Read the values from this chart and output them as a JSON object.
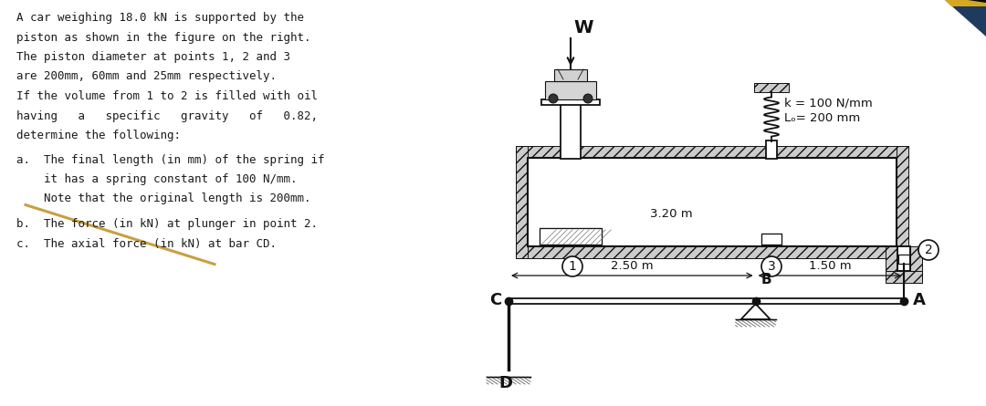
{
  "bg_color": "#ffffff",
  "lc": "#111111",
  "hc": "#777777",
  "problem_lines": [
    "A car weighing 18.0 kN is supported by the",
    "piston as shown in the figure on the right.",
    "The piston diameter at points 1, 2 and 3",
    "are 200mm, 60mm and 25mm respectively.",
    "If the volume from 1 to 2 is filled with oil",
    "having   a   specific   gravity   of   0.82,",
    "determine the following:"
  ],
  "item_a1": "a.  The final length (in mm) of the spring if",
  "item_a2": "    it has a spring constant of 100 N/mm.",
  "item_a3": "    Note that the original length is 200mm.",
  "item_b": "b.  The force (in kN) at plunger in point 2.",
  "item_c": "c.  The axial force (in kN) at bar CD.",
  "spring_k": "k = 100 N/mm",
  "spring_L": "Lₒ= 200 mm",
  "dim_320": "3.20 m",
  "dim_250": "2.50 m",
  "dim_150": "1.50 m",
  "label_W": "W",
  "label_1": "1",
  "label_2": "2",
  "label_3": "3",
  "label_B": "B",
  "label_C": "C",
  "label_D": "D",
  "label_A": "A",
  "corner_blue": "#1e3a5f",
  "corner_yellow": "#d4a820",
  "diag_color": "#c8a040"
}
